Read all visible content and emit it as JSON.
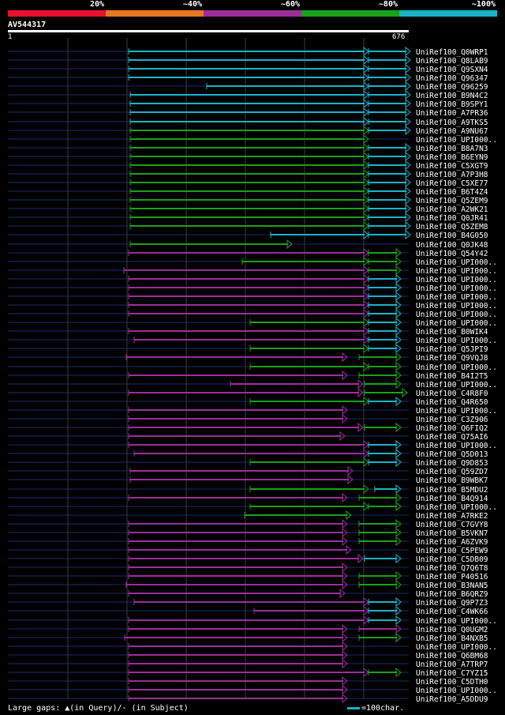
{
  "legend": {
    "segments": [
      {
        "label": "20%",
        "color": "#e8112d"
      },
      {
        "label": "~40%",
        "color": "#e87722"
      },
      {
        "label": "~60%",
        "color": "#9c2e9a"
      },
      {
        "label": "~80%",
        "color": "#1aa01a"
      },
      {
        "label": "~100%",
        "color": "#19b4c8"
      }
    ]
  },
  "query": {
    "id": "AV544317",
    "start": "1",
    "end": "676",
    "length": 676
  },
  "footer": {
    "gaps_text": "Large gaps: ▲(in Query)/- (in Subject)",
    "scale_text": "=100char.",
    "scale_color": "#19b4c8"
  },
  "hits": [
    {
      "name": "UniRef100_Q0WRP1",
      "bars": [
        [
          163,
          467,
          "c"
        ],
        [
          467,
          520,
          "c"
        ]
      ]
    },
    {
      "name": "UniRef100_Q8LAB9",
      "bars": [
        [
          163,
          467,
          "c"
        ],
        [
          467,
          520,
          "c"
        ]
      ]
    },
    {
      "name": "UniRef100_Q9SXN4",
      "bars": [
        [
          163,
          467,
          "c"
        ],
        [
          467,
          520,
          "c"
        ]
      ]
    },
    {
      "name": "UniRef100_Q96347",
      "bars": [
        [
          163,
          467,
          "c"
        ],
        [
          467,
          520,
          "c"
        ]
      ]
    },
    {
      "name": "UniRef100_Q96259",
      "bars": [
        [
          262,
          467,
          "c"
        ],
        [
          467,
          520,
          "c"
        ]
      ]
    },
    {
      "name": "UniRef100_B9N4C2",
      "bars": [
        [
          165,
          467,
          "c"
        ],
        [
          467,
          520,
          "c"
        ]
      ]
    },
    {
      "name": "UniRef100_B9SPY1",
      "bars": [
        [
          165,
          467,
          "c"
        ],
        [
          467,
          520,
          "c"
        ]
      ]
    },
    {
      "name": "UniRef100_A7PR36",
      "bars": [
        [
          165,
          467,
          "c"
        ],
        [
          467,
          520,
          "c"
        ]
      ]
    },
    {
      "name": "UniRef100_A9TKS5",
      "bars": [
        [
          165,
          467,
          "c"
        ],
        [
          467,
          520,
          "c"
        ]
      ]
    },
    {
      "name": "UniRef100_A9NU67",
      "bars": [
        [
          165,
          467,
          "g"
        ],
        [
          467,
          520,
          "c"
        ]
      ]
    },
    {
      "name": "UniRef100_UPI000..",
      "bars": [
        [
          165,
          467,
          "g"
        ]
      ]
    },
    {
      "name": "UniRef100_B8A7N3",
      "bars": [
        [
          165,
          467,
          "g"
        ],
        [
          467,
          520,
          "c"
        ]
      ]
    },
    {
      "name": "UniRef100_B6EYN9",
      "bars": [
        [
          165,
          467,
          "g"
        ],
        [
          467,
          520,
          "c"
        ]
      ]
    },
    {
      "name": "UniRef100_C5XGT9",
      "bars": [
        [
          165,
          467,
          "g"
        ],
        [
          467,
          520,
          "c"
        ]
      ]
    },
    {
      "name": "UniRef100_A7P3H8",
      "bars": [
        [
          165,
          467,
          "g"
        ],
        [
          467,
          520,
          "c"
        ]
      ]
    },
    {
      "name": "UniRef100_C5XE77",
      "bars": [
        [
          165,
          467,
          "g"
        ],
        [
          467,
          520,
          "c"
        ]
      ]
    },
    {
      "name": "UniRef100_B6T4Z4",
      "bars": [
        [
          165,
          467,
          "g"
        ],
        [
          467,
          520,
          "c"
        ]
      ]
    },
    {
      "name": "UniRef100_Q5ZEM9",
      "bars": [
        [
          165,
          467,
          "g"
        ],
        [
          467,
          520,
          "c"
        ]
      ]
    },
    {
      "name": "UniRef100_A2WK21",
      "bars": [
        [
          165,
          467,
          "g"
        ],
        [
          467,
          520,
          "c"
        ]
      ]
    },
    {
      "name": "UniRef100_Q0JR41",
      "bars": [
        [
          165,
          467,
          "g"
        ],
        [
          467,
          520,
          "c"
        ]
      ]
    },
    {
      "name": "UniRef100_Q5ZEM8",
      "bars": [
        [
          165,
          467,
          "g"
        ],
        [
          467,
          520,
          "c"
        ]
      ]
    },
    {
      "name": "UniRef100_B4G050",
      "bars": [
        [
          343,
          467,
          "c"
        ],
        [
          467,
          520,
          "c"
        ]
      ]
    },
    {
      "name": "UniRef100_Q0JK48",
      "bars": [
        [
          165,
          370,
          "g"
        ]
      ]
    },
    {
      "name": "UniRef100_Q54Y42",
      "bars": [
        [
          163,
          467,
          "p"
        ],
        [
          467,
          508,
          "g"
        ]
      ]
    },
    {
      "name": "UniRef100_UPI000..",
      "bars": [
        [
          307,
          467,
          "g"
        ],
        [
          467,
          508,
          "g"
        ]
      ]
    },
    {
      "name": "UniRef100_UPI000..",
      "bars": [
        [
          157,
          467,
          "p"
        ],
        [
          467,
          508,
          "g"
        ]
      ]
    },
    {
      "name": "UniRef100_UPI000..",
      "bars": [
        [
          163,
          467,
          "p"
        ],
        [
          467,
          508,
          "c"
        ]
      ]
    },
    {
      "name": "UniRef100_UPI000..",
      "bars": [
        [
          163,
          467,
          "p"
        ],
        [
          467,
          508,
          "c"
        ]
      ]
    },
    {
      "name": "UniRef100_UPI000..",
      "bars": [
        [
          163,
          467,
          "p"
        ],
        [
          467,
          508,
          "c"
        ]
      ]
    },
    {
      "name": "UniRef100_UPI000..",
      "bars": [
        [
          163,
          467,
          "p"
        ],
        [
          467,
          508,
          "c"
        ]
      ]
    },
    {
      "name": "UniRef100_UPI000..",
      "bars": [
        [
          163,
          467,
          "p"
        ],
        [
          467,
          508,
          "c"
        ]
      ]
    },
    {
      "name": "UniRef100_UPI000..",
      "bars": [
        [
          317,
          467,
          "g"
        ],
        [
          467,
          508,
          "c"
        ]
      ]
    },
    {
      "name": "UniRef100_B0WIK4",
      "bars": [
        [
          163,
          467,
          "p"
        ],
        [
          467,
          508,
          "c"
        ]
      ]
    },
    {
      "name": "UniRef100_UPI000..",
      "bars": [
        [
          170,
          467,
          "p"
        ],
        [
          467,
          508,
          "c"
        ]
      ]
    },
    {
      "name": "UniRef100_Q5JPI9",
      "bars": [
        [
          317,
          467,
          "g"
        ],
        [
          467,
          508,
          "c"
        ]
      ]
    },
    {
      "name": "UniRef100_Q9VQJ8",
      "bars": [
        [
          160,
          440,
          "p"
        ],
        [
          455,
          508,
          "g"
        ]
      ]
    },
    {
      "name": "UniRef100_UPI000..",
      "bars": [
        [
          317,
          467,
          "g"
        ],
        [
          467,
          508,
          "g"
        ]
      ]
    },
    {
      "name": "UniRef100_B4I2T5",
      "bars": [
        [
          163,
          440,
          "p"
        ],
        [
          455,
          508,
          "g"
        ]
      ]
    },
    {
      "name": "UniRef100_UPI000..",
      "bars": [
        [
          292,
          460,
          "p"
        ],
        [
          462,
          508,
          "g"
        ]
      ]
    },
    {
      "name": "UniRef100_C4R8F0",
      "bars": [
        [
          163,
          460,
          "p"
        ],
        [
          462,
          516,
          "g"
        ]
      ]
    },
    {
      "name": "UniRef100_Q4R650",
      "bars": [
        [
          317,
          467,
          "g"
        ],
        [
          467,
          508,
          "c"
        ]
      ]
    },
    {
      "name": "UniRef100_UPI000..",
      "bars": [
        [
          163,
          440,
          "p"
        ]
      ]
    },
    {
      "name": "UniRef100_C3Z906",
      "bars": [
        [
          163,
          440,
          "p"
        ]
      ]
    },
    {
      "name": "UniRef100_Q6FIQ2",
      "bars": [
        [
          163,
          460,
          "p"
        ],
        [
          462,
          508,
          "g"
        ]
      ]
    },
    {
      "name": "UniRef100_Q75AI6",
      "bars": [
        [
          163,
          437,
          "p"
        ]
      ]
    },
    {
      "name": "UniRef100_UPI000..",
      "bars": [
        [
          163,
          467,
          "p"
        ],
        [
          467,
          508,
          "c"
        ]
      ]
    },
    {
      "name": "UniRef100_Q5D013",
      "bars": [
        [
          170,
          467,
          "p"
        ],
        [
          467,
          508,
          "c"
        ]
      ]
    },
    {
      "name": "UniRef100_Q9D853",
      "bars": [
        [
          317,
          467,
          "g"
        ],
        [
          467,
          508,
          "c"
        ]
      ]
    },
    {
      "name": "UniRef100_Q59ZD7",
      "bars": [
        [
          165,
          447,
          "p"
        ]
      ]
    },
    {
      "name": "UniRef100_B9WBK7",
      "bars": [
        [
          165,
          447,
          "p"
        ]
      ]
    },
    {
      "name": "UniRef100_B5MDU2",
      "bars": [
        [
          317,
          467,
          "g"
        ],
        [
          475,
          508,
          "c"
        ]
      ]
    },
    {
      "name": "UniRef100_B4Q914",
      "bars": [
        [
          163,
          440,
          "p"
        ],
        [
          455,
          508,
          "g"
        ]
      ]
    },
    {
      "name": "UniRef100_UPI000..",
      "bars": [
        [
          317,
          467,
          "g"
        ],
        [
          467,
          508,
          "g"
        ]
      ]
    },
    {
      "name": "UniRef100_A7RKE2",
      "bars": [
        [
          310,
          445,
          "g"
        ]
      ]
    },
    {
      "name": "UniRef100_C7GVY8",
      "bars": [
        [
          163,
          440,
          "p"
        ],
        [
          455,
          508,
          "g"
        ]
      ]
    },
    {
      "name": "UniRef100_B5VKN7",
      "bars": [
        [
          163,
          440,
          "p"
        ],
        [
          455,
          508,
          "g"
        ]
      ]
    },
    {
      "name": "UniRef100_A6ZVK9",
      "bars": [
        [
          163,
          440,
          "p"
        ],
        [
          455,
          508,
          "g"
        ]
      ]
    },
    {
      "name": "UniRef100_C5PEW9",
      "bars": [
        [
          163,
          445,
          "p"
        ]
      ]
    },
    {
      "name": "UniRef100_C5DB09",
      "bars": [
        [
          163,
          460,
          "p"
        ],
        [
          462,
          508,
          "c"
        ]
      ]
    },
    {
      "name": "UniRef100_Q7Q6T8",
      "bars": [
        [
          163,
          440,
          "p"
        ]
      ]
    },
    {
      "name": "UniRef100_P40516",
      "bars": [
        [
          163,
          440,
          "p"
        ],
        [
          455,
          508,
          "g"
        ]
      ]
    },
    {
      "name": "UniRef100_B3NAN5",
      "bars": [
        [
          160,
          440,
          "p"
        ],
        [
          455,
          508,
          "g"
        ]
      ]
    },
    {
      "name": "UniRef100_B6QRZ9",
      "bars": [
        [
          163,
          437,
          "p"
        ]
      ]
    },
    {
      "name": "UniRef100_Q9P7Z3",
      "bars": [
        [
          170,
          467,
          "p"
        ],
        [
          467,
          508,
          "c"
        ]
      ]
    },
    {
      "name": "UniRef100_C4WK66",
      "bars": [
        [
          322,
          467,
          "p"
        ],
        [
          467,
          508,
          "c"
        ]
      ]
    },
    {
      "name": "UniRef100_UPI000..",
      "bars": [
        [
          163,
          467,
          "p"
        ],
        [
          467,
          508,
          "c"
        ]
      ]
    },
    {
      "name": "UniRef100_Q0UGM2",
      "bars": [
        [
          163,
          440,
          "p"
        ],
        [
          455,
          508,
          "p"
        ]
      ]
    },
    {
      "name": "UniRef100_B4NXB5",
      "bars": [
        [
          158,
          440,
          "p"
        ],
        [
          455,
          508,
          "g"
        ]
      ]
    },
    {
      "name": "UniRef100_UPI000..",
      "bars": [
        [
          163,
          440,
          "p"
        ]
      ]
    },
    {
      "name": "UniRef100_Q6BM68",
      "bars": [
        [
          163,
          440,
          "p"
        ]
      ]
    },
    {
      "name": "UniRef100_A7TRP7",
      "bars": [
        [
          163,
          440,
          "p"
        ]
      ]
    },
    {
      "name": "UniRef100_C7YZ15",
      "bars": [
        [
          163,
          467,
          "p"
        ],
        [
          467,
          508,
          "g"
        ]
      ]
    },
    {
      "name": "UniRef100_C5DTH0",
      "bars": [
        [
          163,
          440,
          "p"
        ]
      ]
    },
    {
      "name": "UniRef100_UPI000..",
      "bars": [
        [
          163,
          440,
          "p"
        ]
      ]
    },
    {
      "name": "UniRef100_A5DDU9",
      "bars": [
        [
          163,
          440,
          "p"
        ]
      ]
    }
  ],
  "colors": {
    "c": "#19b4c8",
    "g": "#1aa01a",
    "p": "#9c2e9a",
    "track": "#1a2a6a",
    "grid": "#3a3a3a"
  }
}
